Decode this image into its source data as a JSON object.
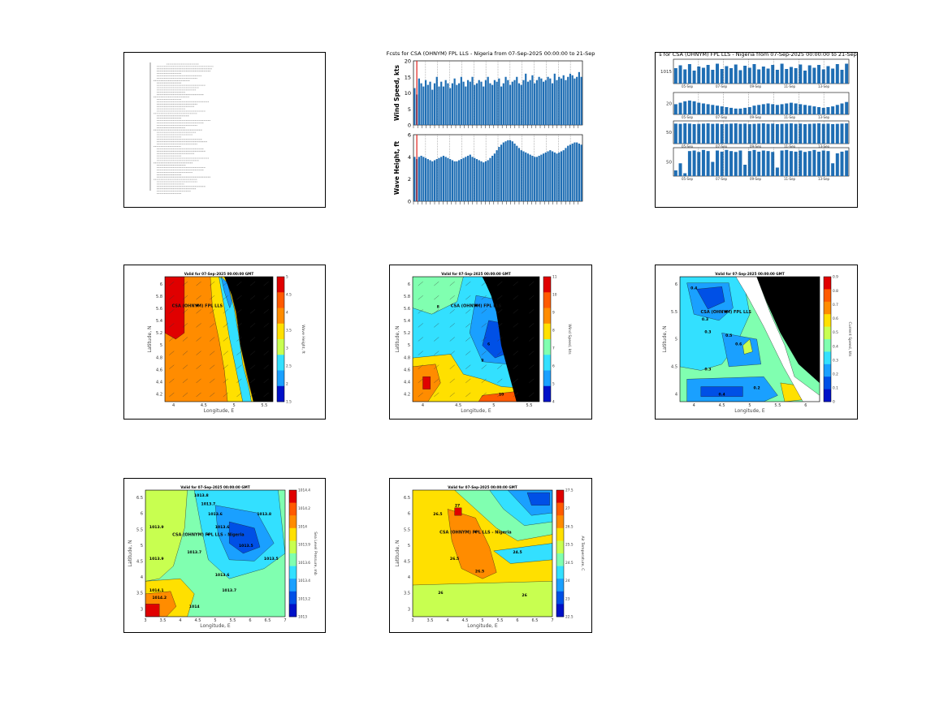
{
  "report": {
    "lines": [
      "",
      "",
      "",
      "",
      "",
      "",
      "",
      "",
      "",
      "",
      "",
      "",
      "",
      "",
      "",
      "",
      "",
      "",
      "",
      "",
      "",
      "",
      "",
      "",
      "",
      "",
      "",
      "",
      "",
      "",
      "",
      "",
      "",
      "",
      "",
      "",
      "",
      "",
      "",
      "",
      "",
      "",
      "",
      "",
      "",
      "",
      "",
      "",
      "",
      "",
      "",
      "",
      "",
      "",
      "",
      ""
    ]
  },
  "wind_wave_bars": {
    "title": "Fcsts for CSA (OHNYM) FPL LLS - Nigeria from 07-Sep-2025 00:00:00 to 21-Sep",
    "wind": {
      "ylabel": "Wind Speed, kts",
      "yticks": [
        "0",
        "5",
        "10",
        "15",
        "20"
      ],
      "ylim": [
        0,
        20
      ],
      "values": [
        11.5,
        9.5,
        14.5,
        13,
        12,
        14,
        12.5,
        13.5,
        11,
        13,
        15,
        12,
        13.5,
        12,
        14,
        13,
        11.5,
        13,
        14.5,
        12.5,
        13,
        15,
        13.5,
        12,
        14,
        13.5,
        15,
        12.5,
        13,
        14,
        13.5,
        12,
        14,
        15,
        13,
        12.5,
        14,
        13.5,
        14.5,
        12,
        13,
        15,
        14,
        12.5,
        13.5,
        14,
        15,
        13,
        12.5,
        14,
        16,
        13.5,
        14,
        15.5,
        13,
        14,
        15,
        14.5,
        13.5,
        14,
        15,
        14.5,
        13,
        16,
        14,
        15,
        14.5,
        15.5,
        14,
        15,
        16,
        15.5,
        14.5,
        15,
        16.5,
        15
      ]
    },
    "wave": {
      "ylabel": "Wave Height, ft",
      "yticks": [
        "0",
        "2",
        "4",
        "6"
      ],
      "ylim": [
        0,
        6
      ],
      "values": [
        4.0,
        3.8,
        4.0,
        4.1,
        4.0,
        3.9,
        3.8,
        3.7,
        3.6,
        3.7,
        3.8,
        3.9,
        4.0,
        4.1,
        4.0,
        3.9,
        3.8,
        3.7,
        3.6,
        3.6,
        3.7,
        3.8,
        3.9,
        4.0,
        4.1,
        4.2,
        4.0,
        3.9,
        3.8,
        3.7,
        3.6,
        3.5,
        3.6,
        3.7,
        3.9,
        4.1,
        4.3,
        4.6,
        4.9,
        5.1,
        5.3,
        5.4,
        5.5,
        5.5,
        5.4,
        5.2,
        5.0,
        4.8,
        4.6,
        4.5,
        4.4,
        4.3,
        4.2,
        4.1,
        4.0,
        4.0,
        4.1,
        4.2,
        4.3,
        4.4,
        4.5,
        4.6,
        4.5,
        4.4,
        4.3,
        4.4,
        4.5,
        4.6,
        4.8,
        5.0,
        5.1,
        5.2,
        5.3,
        5.3,
        5.2,
        5.1
      ]
    }
  },
  "multi_bars": {
    "title": "s for CSA (OHNYM) FPL LLS - Nigeria from 07-Sep-2025 00:00:00 to 21-Sep",
    "date_labels": [
      "05-Sep",
      "07-Sep",
      "09-Sep",
      "11-Sep",
      "13-Sep"
    ],
    "panels": [
      {
        "ytick": "1015",
        "ylim": [
          1010,
          1016
        ],
        "values": [
          1013.8,
          1014.5,
          1013.5,
          1014.8,
          1013.2,
          1014.2,
          1013.9,
          1014.6,
          1013.4,
          1014.9,
          1013.6,
          1014.3,
          1013.8,
          1014.7,
          1013.3,
          1014.4,
          1013.9,
          1014.8,
          1013.5,
          1014.2,
          1013.7,
          1014.6,
          1013.4,
          1014.9,
          1013.6,
          1014.1,
          1013.8,
          1014.7,
          1013.2,
          1014.5,
          1013.9,
          1014.6,
          1013.5,
          1014.3,
          1013.7,
          1014.8,
          1013.4,
          1014.9
        ]
      },
      {
        "ytick": "20",
        "ylim": [
          0,
          30
        ],
        "values": [
          14,
          16,
          18,
          19,
          18,
          16,
          15,
          14,
          13,
          12,
          11,
          10,
          9,
          8,
          8,
          9,
          10,
          12,
          13,
          14,
          15,
          14,
          13,
          14,
          15,
          16,
          15,
          14,
          13,
          12,
          11,
          10,
          9,
          10,
          11,
          13,
          15,
          17
        ]
      },
      {
        "ytick": "50",
        "ylim": [
          0,
          100
        ],
        "values": [
          88,
          87,
          89,
          88,
          86,
          87,
          88,
          89,
          87,
          88,
          86,
          87,
          88,
          89,
          87,
          88,
          86,
          87,
          88,
          89,
          87,
          88,
          86,
          87,
          88,
          89,
          87,
          88,
          86,
          87,
          88,
          89,
          87,
          88,
          86,
          87,
          88,
          89
        ]
      },
      {
        "ytick": "50",
        "ylim": [
          0,
          100
        ],
        "values": [
          20,
          45,
          10,
          88,
          90,
          85,
          92,
          88,
          50,
          90,
          86,
          92,
          88,
          85,
          90,
          40,
          88,
          92,
          86,
          90,
          88,
          85,
          30,
          90,
          92,
          88,
          86,
          90,
          85,
          88,
          92,
          86,
          90,
          88,
          45,
          80,
          86,
          90
        ]
      }
    ]
  },
  "maps": [
    {
      "title": "Valid for 07-Sep-2025 00:00:00 GMT",
      "xlabel": "Longitude, E",
      "ylabel": "Latitude, N",
      "cbar_label": "Wave Height, ft",
      "station_label": "CSA (OHNYM) FPL LLS",
      "xticks": [
        "4",
        "4.5",
        "5",
        "5.5"
      ],
      "yticks": [
        "6",
        "5.8",
        "5.6",
        "5.4",
        "5.2",
        "5",
        "4.8",
        "4.6",
        "4.4",
        "4.2"
      ],
      "cbar_ticks": [
        "5",
        "4.5",
        "4",
        "3.5",
        "3",
        "2.5",
        "2",
        "1.5"
      ],
      "contour_labels": []
    },
    {
      "title": "Valid for 07-Sep-2025 00:00:00 GMT",
      "xlabel": "Longitude, E",
      "ylabel": "Latitude, N",
      "cbar_label": "Wind Speed, kts",
      "station_label": "CSA (OHNYM) FPL LLS",
      "xticks": [
        "4",
        "4.5",
        "5",
        "5.5"
      ],
      "yticks": [
        "6",
        "5.8",
        "5.6",
        "5.4",
        "5.2",
        "5",
        "4.8",
        "4.6",
        "4.4",
        "4.2"
      ],
      "cbar_ticks": [
        "11",
        "10",
        "9",
        "8",
        "7",
        "6",
        "5",
        "4"
      ],
      "contour_labels": [
        "8",
        "9",
        "6",
        "10"
      ]
    },
    {
      "title": "Valid for 07-Sep-2025 00:00:00 GMT",
      "xlabel": "Longitude, E",
      "ylabel": "Latitude, N",
      "cbar_label": "Current Speed, kts",
      "station_label": "CSA (OHNYM) FPL LLS",
      "xticks": [
        "4",
        "4.5",
        "5",
        "5.5",
        "6"
      ],
      "yticks": [
        "6",
        "5.5",
        "5",
        "4.5",
        "4"
      ],
      "cbar_ticks": [
        "0.9",
        "0.8",
        "0.7",
        "0.6",
        "0.5",
        "0.4",
        "0.3",
        "0.2",
        "0.1",
        "0"
      ],
      "contour_labels": [
        "0.4",
        "0.3",
        "0.3",
        "0.5",
        "0.6",
        "0.3",
        "0.2",
        "0.4"
      ]
    },
    {
      "title": "Valid for 07-Sep-2025 00:00:00 GMT",
      "xlabel": "Longitude, E",
      "ylabel": "Latitude, N",
      "cbar_label": "Sea Level Pressure, mb",
      "station_label": "CSA (OHNYM) FPL LLS - Nigeria",
      "xticks": [
        "3",
        "3.5",
        "4",
        "4.5",
        "5",
        "5.5",
        "6",
        "6.5",
        "7"
      ],
      "yticks": [
        "6.5",
        "6",
        "5.5",
        "5",
        "4.5",
        "4",
        "3.5",
        "3"
      ],
      "cbar_ticks": [
        "1014.4",
        "1014.2",
        "1014",
        "1013.9",
        "1013.6",
        "1013.4",
        "1013.2",
        "1013"
      ],
      "contour_labels": [
        "1013.8",
        "1013.7",
        "1013.6",
        "1013.9",
        "1013.7",
        "1013.6",
        "1013.5",
        "1013.9",
        "1014.1",
        "1014.2",
        "1014",
        "1013.8",
        "1013.6",
        "1013.7",
        "1013.5"
      ]
    },
    {
      "title": "Valid for 07-Sep-2025 00:00:00 GMT",
      "xlabel": "Longitude, E",
      "ylabel": "Latitude, N",
      "cbar_label": "Air Temperature, C",
      "station_label": "CSA (OHNYM) FPL LLS - Nigeria",
      "xticks": [
        "3",
        "3.5",
        "4",
        "4.5",
        "5",
        "5.5",
        "6",
        "6.5",
        "7"
      ],
      "yticks": [
        "6.5",
        "6",
        "5.5",
        "5",
        "4.5",
        "4",
        "3.5",
        "3"
      ],
      "cbar_ticks": [
        "27.5",
        "27",
        "26.5",
        "25.5",
        "24.5",
        "24",
        "23",
        "22.5"
      ],
      "contour_labels": [
        "26.5",
        "27",
        "26.5",
        "26",
        "26",
        "24.5",
        "26.5"
      ]
    }
  ]
}
